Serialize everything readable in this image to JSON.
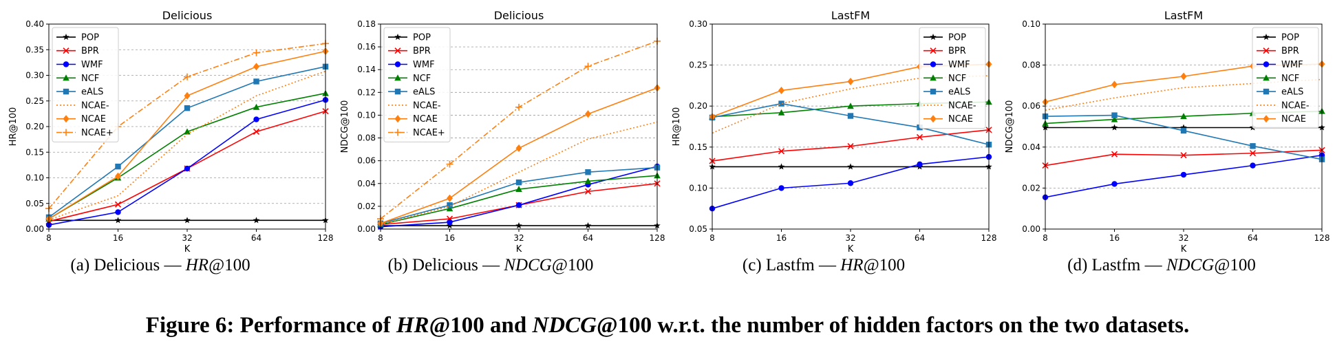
{
  "figure": {
    "caption": {
      "prefix": "Figure 6: Performance of ",
      "m1": "HR",
      "m1s": "@100 and ",
      "m2": "NDCG",
      "m2s": "@100 w.r.t. the number of hidden factors on the two datasets."
    },
    "subcaptions": [
      {
        "tag": "(a)",
        "dataset": "Delicious",
        "metric": "HR",
        "suffix": "@100"
      },
      {
        "tag": "(b)",
        "dataset": "Delicious",
        "metric": "NDCG",
        "suffix": "@100"
      },
      {
        "tag": "(c)",
        "dataset": "Lastfm",
        "metric": "HR",
        "suffix": "@100"
      },
      {
        "tag": "(d)",
        "dataset": "Lastfm",
        "metric": "NDCG",
        "suffix": "@100"
      }
    ]
  },
  "styles": {
    "POP": {
      "color": "#000000",
      "marker": "star",
      "dash": "solid"
    },
    "BPR": {
      "color": "#ff0000",
      "marker": "x",
      "dash": "solid"
    },
    "WMF": {
      "color": "#0000ff",
      "marker": "circle",
      "dash": "solid"
    },
    "NCF": {
      "color": "#008000",
      "marker": "triangle",
      "dash": "solid"
    },
    "eALS": {
      "color": "#1f77b4",
      "marker": "square",
      "dash": "solid"
    },
    "NCAE-": {
      "color": "#ff7f0e",
      "marker": "none",
      "dash": "dotted"
    },
    "NCAE": {
      "color": "#ff7f0e",
      "marker": "diamond",
      "dash": "solid"
    },
    "NCAE+": {
      "color": "#ff7f0e",
      "marker": "plus",
      "dash": "dashdot"
    }
  },
  "chart_data": [
    {
      "type": "line",
      "title": "Delicious",
      "xlabel": "K",
      "ylabel": "HR@100",
      "x": [
        8,
        16,
        32,
        64,
        128
      ],
      "xscale": "log2",
      "ylim": [
        0,
        0.4
      ],
      "yticks": [
        "0.00",
        "0.05",
        "0.10",
        "0.15",
        "0.20",
        "0.25",
        "0.30",
        "0.35",
        "0.40"
      ],
      "grid": "horizontal-dashed",
      "legend": "top-left",
      "series": [
        {
          "name": "POP",
          "values": [
            0.017,
            0.017,
            0.017,
            0.017,
            0.017
          ]
        },
        {
          "name": "BPR",
          "values": [
            0.015,
            0.048,
            0.118,
            0.19,
            0.23
          ]
        },
        {
          "name": "WMF",
          "values": [
            0.008,
            0.033,
            0.118,
            0.214,
            0.252
          ]
        },
        {
          "name": "NCF",
          "values": [
            0.02,
            0.1,
            0.19,
            0.238,
            0.265
          ]
        },
        {
          "name": "eALS",
          "values": [
            0.023,
            0.122,
            0.236,
            0.288,
            0.317
          ]
        },
        {
          "name": "NCAE-",
          "values": [
            0.018,
            0.065,
            0.185,
            0.26,
            0.308
          ]
        },
        {
          "name": "NCAE",
          "values": [
            0.02,
            0.103,
            0.26,
            0.317,
            0.347
          ]
        },
        {
          "name": "NCAE+",
          "values": [
            0.04,
            0.2,
            0.297,
            0.344,
            0.362
          ]
        }
      ]
    },
    {
      "type": "line",
      "title": "Delicious",
      "xlabel": "K",
      "ylabel": "NDCG@100",
      "x": [
        8,
        16,
        32,
        64,
        128
      ],
      "xscale": "log2",
      "ylim": [
        0,
        0.18
      ],
      "yticks": [
        "0.00",
        "0.02",
        "0.04",
        "0.06",
        "0.08",
        "0.10",
        "0.12",
        "0.14",
        "0.16",
        "0.18"
      ],
      "grid": "horizontal-dashed",
      "legend": "top-left",
      "series": [
        {
          "name": "POP",
          "values": [
            0.003,
            0.003,
            0.003,
            0.003,
            0.003
          ]
        },
        {
          "name": "BPR",
          "values": [
            0.004,
            0.009,
            0.021,
            0.033,
            0.04
          ]
        },
        {
          "name": "WMF",
          "values": [
            0.002,
            0.006,
            0.021,
            0.039,
            0.055
          ]
        },
        {
          "name": "NCF",
          "values": [
            0.004,
            0.018,
            0.035,
            0.042,
            0.047
          ]
        },
        {
          "name": "eALS",
          "values": [
            0.005,
            0.021,
            0.041,
            0.05,
            0.054
          ]
        },
        {
          "name": "NCAE-",
          "values": [
            0.004,
            0.02,
            0.05,
            0.079,
            0.094
          ]
        },
        {
          "name": "NCAE",
          "values": [
            0.005,
            0.027,
            0.071,
            0.101,
            0.124
          ]
        },
        {
          "name": "NCAE+",
          "values": [
            0.009,
            0.057,
            0.107,
            0.143,
            0.165
          ]
        }
      ]
    },
    {
      "type": "line",
      "title": "LastFM",
      "xlabel": "K",
      "ylabel": "HR@100",
      "x": [
        8,
        16,
        32,
        64,
        128
      ],
      "xscale": "log2",
      "ylim": [
        0.05,
        0.3
      ],
      "yticks": [
        "0.05",
        "0.10",
        "0.15",
        "0.20",
        "0.25",
        "0.30"
      ],
      "grid": "horizontal-dashed",
      "legend": "top-right",
      "series": [
        {
          "name": "POP",
          "values": [
            0.126,
            0.126,
            0.126,
            0.126,
            0.126
          ]
        },
        {
          "name": "BPR",
          "values": [
            0.133,
            0.145,
            0.151,
            0.162,
            0.171
          ]
        },
        {
          "name": "WMF",
          "values": [
            0.075,
            0.1,
            0.106,
            0.129,
            0.138
          ]
        },
        {
          "name": "NCF",
          "values": [
            0.187,
            0.192,
            0.2,
            0.203,
            0.205
          ]
        },
        {
          "name": "eALS",
          "values": [
            0.186,
            0.203,
            0.188,
            0.174,
            0.153
          ]
        },
        {
          "name": "NCAE-",
          "values": [
            0.167,
            0.203,
            0.221,
            0.234,
            0.237
          ]
        },
        {
          "name": "NCAE",
          "values": [
            0.187,
            0.219,
            0.23,
            0.248,
            0.251
          ]
        }
      ]
    },
    {
      "type": "line",
      "title": "LastFM",
      "xlabel": "K",
      "ylabel": "NDCG@100",
      "x": [
        8,
        16,
        32,
        64,
        128
      ],
      "xscale": "log2",
      "ylim": [
        0,
        0.1
      ],
      "yticks": [
        "0.00",
        "0.02",
        "0.04",
        "0.06",
        "0.08",
        "0.10"
      ],
      "grid": "horizontal-dashed",
      "legend": "top-right",
      "series": [
        {
          "name": "POP",
          "values": [
            0.0495,
            0.0495,
            0.0495,
            0.0495,
            0.0495
          ]
        },
        {
          "name": "BPR",
          "values": [
            0.031,
            0.0365,
            0.036,
            0.037,
            0.0385
          ]
        },
        {
          "name": "WMF",
          "values": [
            0.0155,
            0.022,
            0.0265,
            0.031,
            0.036
          ]
        },
        {
          "name": "NCF",
          "values": [
            0.0515,
            0.0535,
            0.055,
            0.0565,
            0.0575
          ]
        },
        {
          "name": "eALS",
          "values": [
            0.055,
            0.0555,
            0.048,
            0.0405,
            0.034
          ]
        },
        {
          "name": "NCAE-",
          "values": [
            0.058,
            0.064,
            0.069,
            0.071,
            0.073
          ]
        },
        {
          "name": "NCAE",
          "values": [
            0.062,
            0.0705,
            0.0745,
            0.0795,
            0.0805
          ]
        }
      ]
    }
  ]
}
